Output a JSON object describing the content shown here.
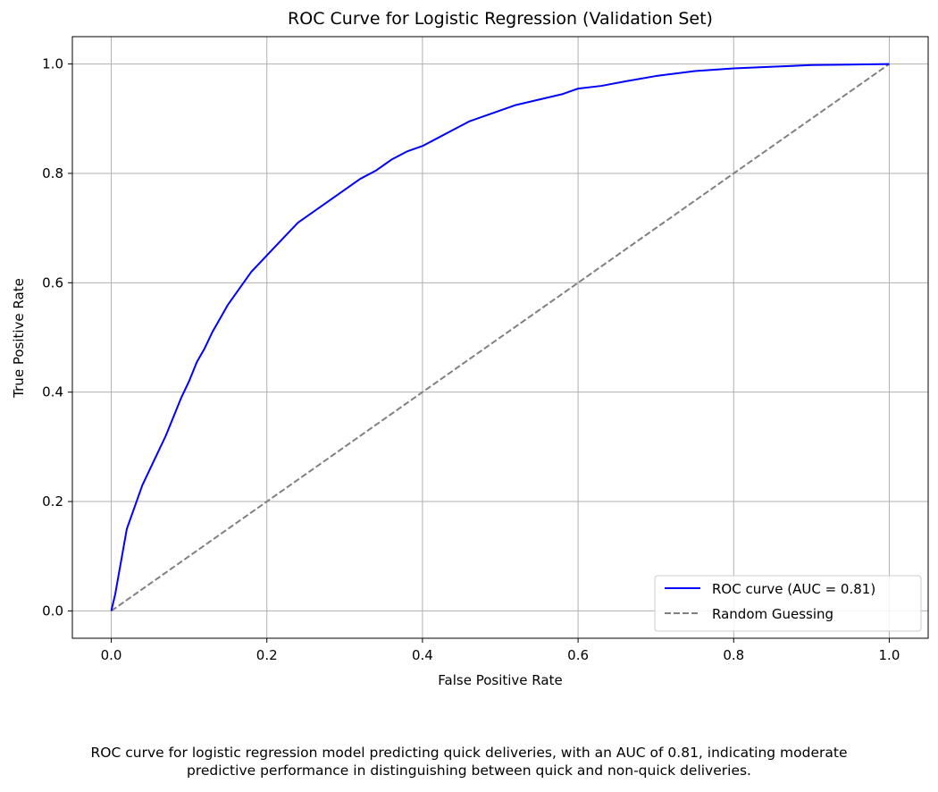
{
  "chart_data": {
    "type": "line",
    "title": "ROC Curve for Logistic Regression (Validation Set)",
    "xlabel": "False Positive Rate",
    "ylabel": "True Positive Rate",
    "xlim": [
      -0.05,
      1.05
    ],
    "ylim": [
      -0.05,
      1.05
    ],
    "xticks": [
      0.0,
      0.2,
      0.4,
      0.6,
      0.8,
      1.0
    ],
    "yticks": [
      0.0,
      0.2,
      0.4,
      0.6,
      0.8,
      1.0
    ],
    "xtick_labels": [
      "0.0",
      "0.2",
      "0.4",
      "0.6",
      "0.8",
      "1.0"
    ],
    "ytick_labels": [
      "0.0",
      "0.2",
      "0.4",
      "0.6",
      "0.8",
      "1.0"
    ],
    "grid": true,
    "legend_position": "lower-right",
    "series": [
      {
        "name": "ROC curve (AUC = 0.81)",
        "color": "#0000ff",
        "style": "solid",
        "x": [
          0.0,
          0.005,
          0.01,
          0.015,
          0.02,
          0.03,
          0.04,
          0.05,
          0.06,
          0.07,
          0.08,
          0.09,
          0.1,
          0.11,
          0.12,
          0.13,
          0.14,
          0.15,
          0.16,
          0.17,
          0.18,
          0.19,
          0.2,
          0.22,
          0.24,
          0.26,
          0.28,
          0.3,
          0.32,
          0.34,
          0.36,
          0.38,
          0.4,
          0.42,
          0.44,
          0.46,
          0.48,
          0.5,
          0.52,
          0.55,
          0.58,
          0.6,
          0.63,
          0.66,
          0.7,
          0.75,
          0.8,
          0.85,
          0.9,
          0.95,
          1.0
        ],
        "y": [
          0.0,
          0.03,
          0.07,
          0.11,
          0.15,
          0.19,
          0.23,
          0.26,
          0.29,
          0.32,
          0.355,
          0.39,
          0.42,
          0.455,
          0.48,
          0.51,
          0.535,
          0.56,
          0.58,
          0.6,
          0.62,
          0.635,
          0.65,
          0.68,
          0.71,
          0.73,
          0.75,
          0.77,
          0.79,
          0.805,
          0.825,
          0.84,
          0.85,
          0.865,
          0.88,
          0.895,
          0.905,
          0.915,
          0.925,
          0.935,
          0.945,
          0.955,
          0.96,
          0.968,
          0.978,
          0.987,
          0.992,
          0.995,
          0.998,
          0.999,
          1.0
        ]
      },
      {
        "name": "Random Guessing",
        "color": "#808080",
        "style": "dashed",
        "x": [
          0.0,
          1.0
        ],
        "y": [
          0.0,
          1.0
        ]
      }
    ]
  },
  "caption": {
    "line1": "ROC curve for logistic regression model predicting quick deliveries, with an AUC of 0.81, indicating moderate",
    "line2": "predictive performance in distinguishing between quick and non-quick deliveries."
  }
}
